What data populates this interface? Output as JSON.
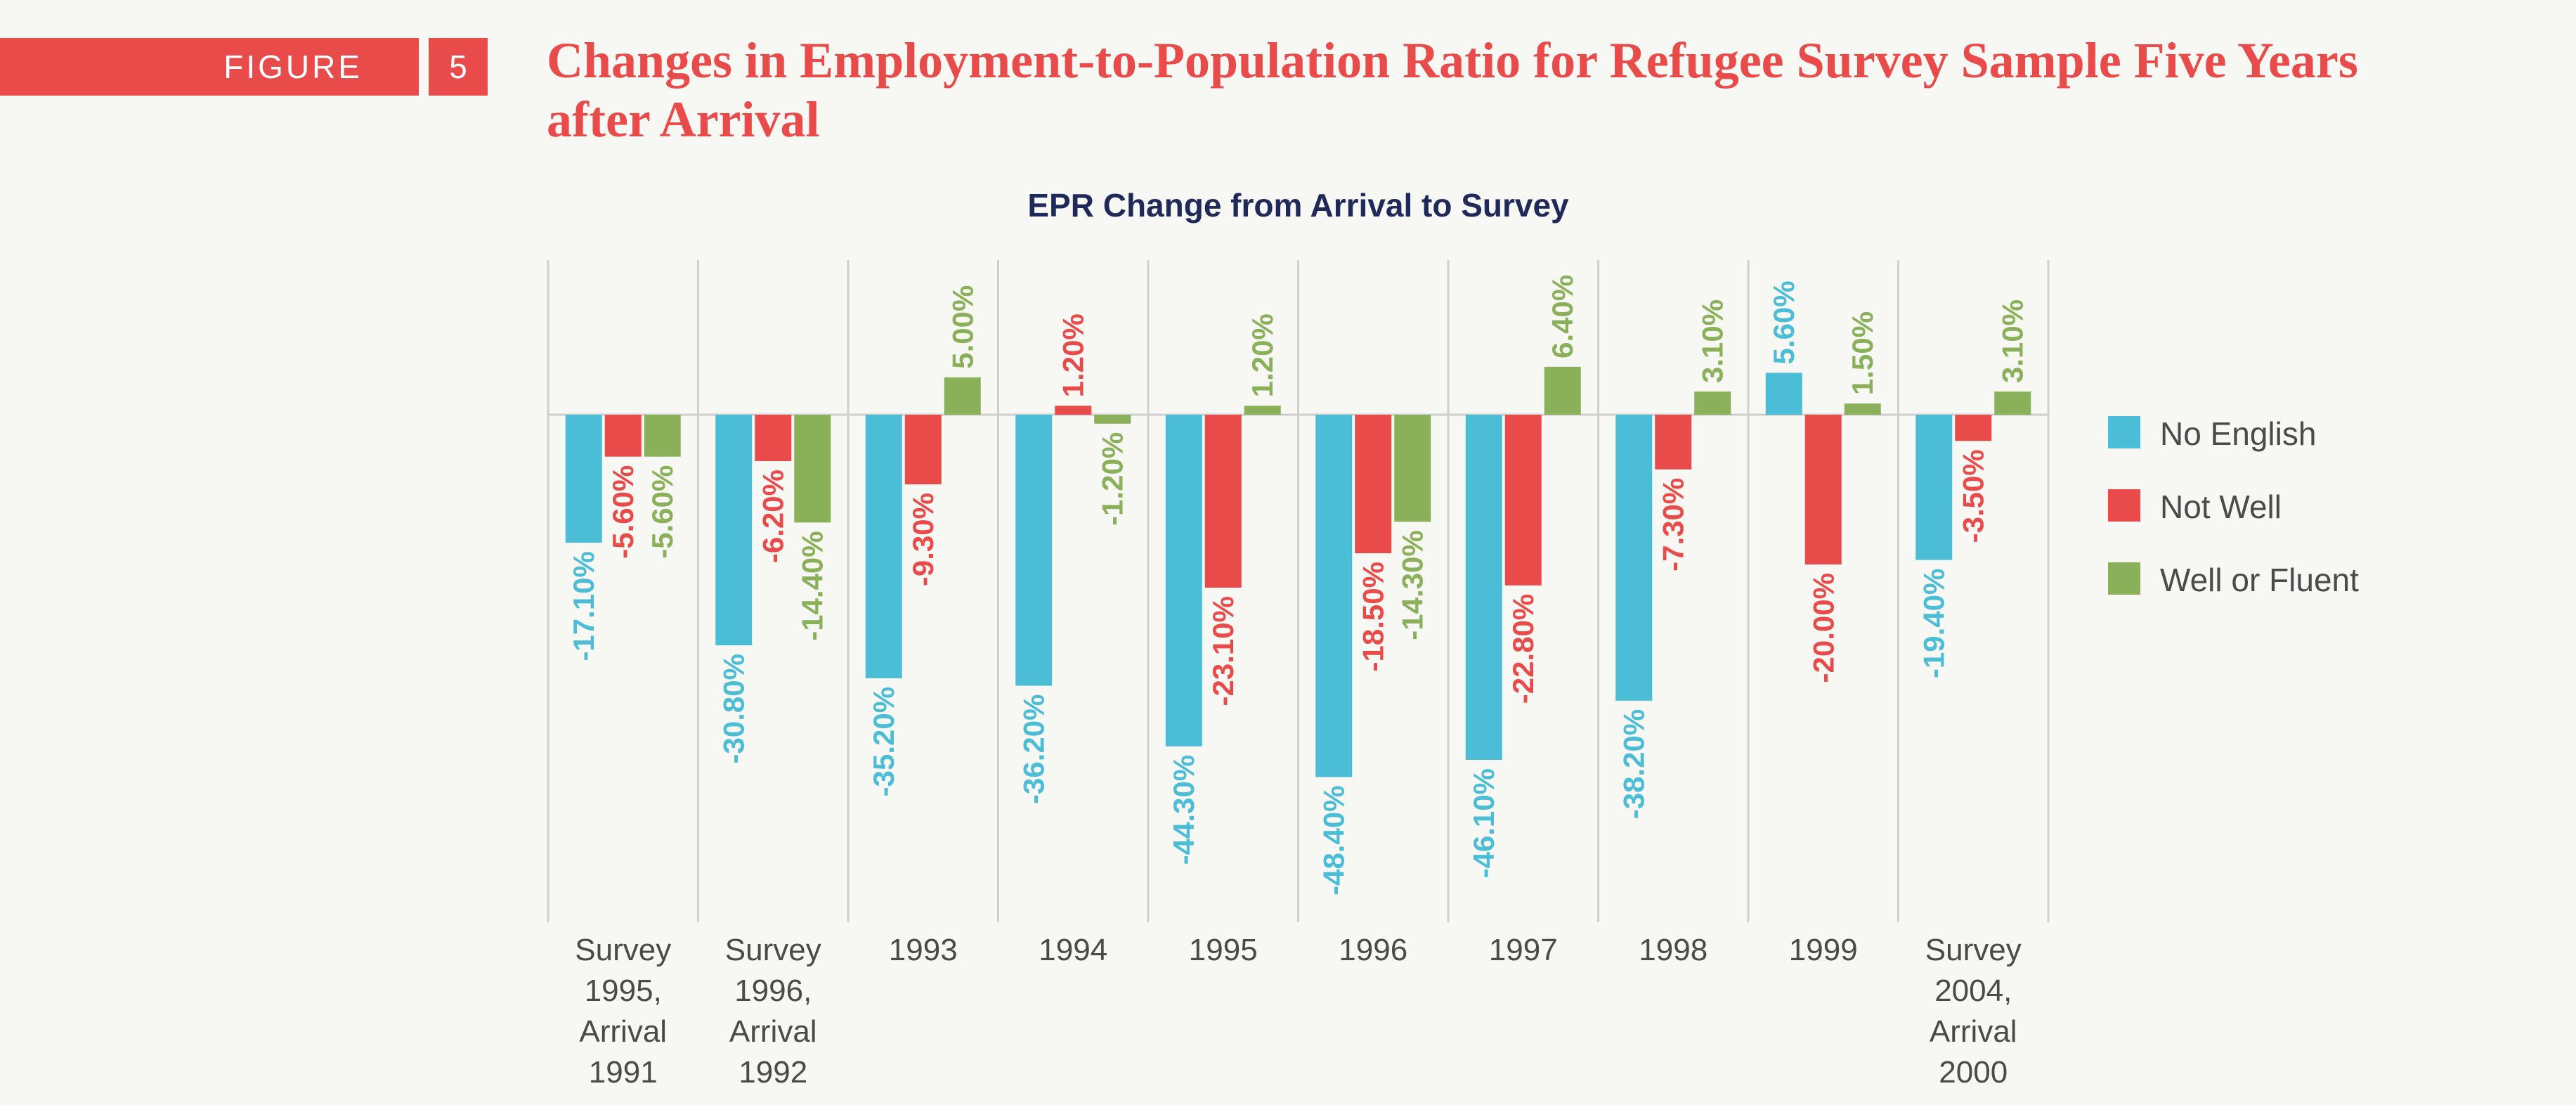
{
  "figure": {
    "label": "FIGURE",
    "number": "5"
  },
  "title": "Changes in Employment-to-Population Ratio for Refugee Survey Sample Five Years after Arrival",
  "chart_data": {
    "type": "bar",
    "title": "EPR Change from Arrival to Survey",
    "xlabel": "",
    "ylabel": "",
    "grid": "vertical separators between categories",
    "legend_position": "right",
    "categories": [
      [
        "Survey",
        "1995,",
        "Arrival",
        "1991"
      ],
      [
        "Survey",
        "1996,",
        "Arrival",
        "1992"
      ],
      [
        "1993"
      ],
      [
        "1994"
      ],
      [
        "1995"
      ],
      [
        "1996"
      ],
      [
        "1997"
      ],
      [
        "1998"
      ],
      [
        "1999"
      ],
      [
        "Survey",
        "2004,",
        "Arrival",
        "2000"
      ]
    ],
    "series": [
      {
        "name": "No English",
        "color": "#4bbdd6",
        "values": [
          -17.1,
          -30.8,
          -35.2,
          -36.2,
          -44.3,
          -48.4,
          -46.1,
          -38.2,
          5.6,
          -19.4
        ],
        "labels": [
          "-17.10%",
          "-30.80%",
          "-35.20%",
          "-36.20%",
          "-44.30%",
          "-48.40%",
          "-46.10%",
          "-38.20%",
          "5.60%",
          "-19.40%"
        ]
      },
      {
        "name": "Not Well",
        "color": "#e94b4b",
        "values": [
          -5.6,
          -6.2,
          -9.3,
          1.2,
          -23.1,
          -18.5,
          -22.8,
          -7.3,
          -20.0,
          -3.5
        ],
        "labels": [
          "-5.60%",
          "-6.20%",
          "-9.30%",
          "1.20%",
          "-23.10%",
          "-18.50%",
          "-22.80%",
          "-7.30%",
          "-20.00%",
          "-3.50%"
        ]
      },
      {
        "name": "Well or Fluent",
        "color": "#8bb05a",
        "values": [
          -5.6,
          -14.4,
          5.0,
          -1.2,
          1.2,
          -14.3,
          6.4,
          3.1,
          1.5,
          3.1
        ],
        "labels": [
          "-5.60%",
          "-14.40%",
          "5.00%",
          "-1.20%",
          "1.20%",
          "-14.30%",
          "6.40%",
          "3.10%",
          "1.50%",
          "3.10%"
        ]
      }
    ]
  },
  "colors": {
    "accent": "#e94b4b",
    "chart_title": "#1f2a5a",
    "axis_text": "#4a4a4a",
    "gridline": "#cfcfcf"
  }
}
